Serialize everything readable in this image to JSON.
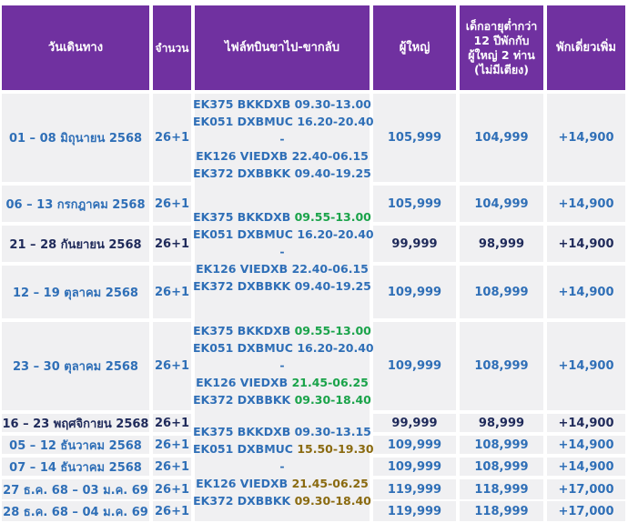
{
  "headers": {
    "date": "วันเดินทาง",
    "seats": "จำนวน",
    "flights": "ไฟล์ทบินขาไป-ขากลับ",
    "adult": "ผู้ใหญ่",
    "child": "เด็กอายุต่ำกว่า 12 ปีพักกับผู้ใหญ่ 2 ท่าน (ไม่มีเตียง)",
    "single": "พักเดี่ยวเพิ่ม"
  },
  "rows": [
    {
      "date": "01 – 08 มิถุนายน 2568",
      "seats": "26+1",
      "adult": "105,999",
      "child": "104,999",
      "single": "+14,900",
      "emphasis": false
    },
    {
      "date": "06 – 13 กรกฎาคม 2568",
      "seats": "26+1",
      "adult": "105,999",
      "child": "104,999",
      "single": "+14,900",
      "emphasis": false
    },
    {
      "date": "21 – 28 กันยายน 2568",
      "seats": "26+1",
      "adult": "99,999",
      "child": "98,999",
      "single": "+14,900",
      "emphasis": true
    },
    {
      "date": "12 – 19 ตุลาคม 2568",
      "seats": "26+1",
      "adult": "109,999",
      "child": "108,999",
      "single": "+14,900",
      "emphasis": false
    },
    {
      "date": "23 – 30 ตุลาคม 2568",
      "seats": "26+1",
      "adult": "109,999",
      "child": "108,999",
      "single": "+14,900",
      "emphasis": false
    },
    {
      "date": "16 – 23 พฤศจิกายน 2568",
      "seats": "26+1",
      "adult": "99,999",
      "child": "98,999",
      "single": "+14,900",
      "emphasis": true
    },
    {
      "date": "05 – 12 ธันวาคม 2568",
      "seats": "26+1",
      "adult": "109,999",
      "child": "108,999",
      "single": "+14,900",
      "emphasis": false
    },
    {
      "date": "07 – 14 ธันวาคม 2568",
      "seats": "26+1",
      "adult": "109,999",
      "child": "108,999",
      "single": "+14,900",
      "emphasis": false
    },
    {
      "date": "27 ธ.ค. 68 – 03 ม.ค. 69",
      "seats": "26+1",
      "adult": "119,999",
      "child": "118,999",
      "single": "+17,000",
      "emphasis": false
    },
    {
      "date": "28 ธ.ค. 68 – 04 ม.ค. 69",
      "seats": "26+1",
      "adult": "119,999",
      "child": "118,999",
      "single": "+17,000",
      "emphasis": false
    }
  ],
  "flight_groups": [
    {
      "lines": [
        {
          "code": "EK375 BKKDXB",
          "time": "09.30-13.00"
        },
        {
          "code": "EK051 DXBMUC",
          "time": "16.20-20.40"
        },
        {
          "dash": "-"
        },
        {
          "code": "EK126 VIEDXB",
          "time": "22.40-06.15"
        },
        {
          "code": "EK372 DXBBKK",
          "time": "09.40-19.25"
        }
      ]
    },
    {
      "lines": [
        {
          "code": "EK375 BKKDXB",
          "time": "09.55-13.00"
        },
        {
          "code": "EK051 DXBMUC",
          "time": "16.20-20.40"
        },
        {
          "dash": "-"
        },
        {
          "code": "EK126 VIEDXB",
          "time": "22.40-06.15"
        },
        {
          "code": "EK372 DXBBKK",
          "time": "09.40-19.25"
        }
      ]
    },
    {
      "lines": [
        {
          "code": "EK375 BKKDXB",
          "time": "09.55-13.00"
        },
        {
          "code": "EK051 DXBMUC",
          "time": "16.20-20.40"
        },
        {
          "dash": "-"
        },
        {
          "code": "EK126 VIEDXB",
          "time": "21.45-06.25"
        },
        {
          "code": "EK372 DXBBKK",
          "time": "09.30-18.40"
        }
      ]
    },
    {
      "lines": [
        {
          "code": "EK375 BKKDXB",
          "time": "09.30-13.15"
        },
        {
          "code": "EK051 DXBMUC",
          "time": "15.50-19.30"
        },
        {
          "dash": "-"
        },
        {
          "code": "EK126 VIEDXB",
          "time": "21.45-06.25"
        },
        {
          "code": "EK372 DXBBKK",
          "time": "09.30-18.40"
        }
      ]
    }
  ],
  "colors": {
    "header_bg": "#7031a0",
    "cell_bg": "#f0f0f2",
    "text_blue": "#2f6fb7",
    "text_dark": "#1f2a5a",
    "time_green": "#1aa34a",
    "time_olive": "#8a6a10"
  }
}
